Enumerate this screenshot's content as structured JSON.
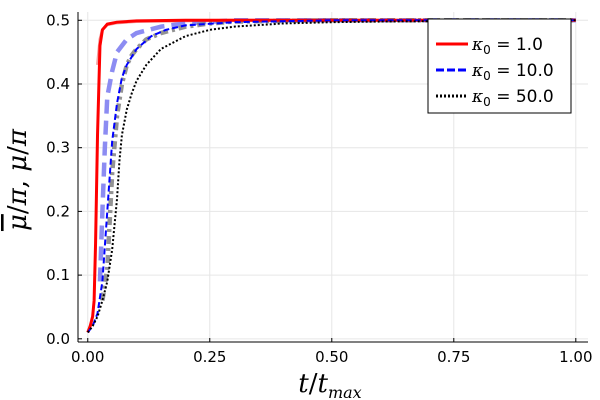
{
  "chart_data": {
    "type": "line",
    "xlabel": "t/t_max",
    "ylabel": "μ̄/π, μ/π",
    "xlim": [
      0.0,
      1.0
    ],
    "ylim": [
      0.0,
      0.5
    ],
    "x_ticks": [
      "0.00",
      "0.25",
      "0.50",
      "0.75",
      "1.00"
    ],
    "y_ticks": [
      "0.0",
      "0.1",
      "0.2",
      "0.3",
      "0.4",
      "0.5"
    ],
    "grid": true,
    "legend_position": "top-right",
    "legend": [
      {
        "prefix": "κ",
        "sub": "0",
        "eq": " = ",
        "value": "1.0"
      },
      {
        "prefix": "κ",
        "sub": "0",
        "eq": " = ",
        "value": "10.0"
      },
      {
        "prefix": "κ",
        "sub": "0",
        "eq": " = ",
        "value": "50.0"
      }
    ],
    "series": [
      {
        "name": "κ0 = 1.0",
        "color": "#ff0000",
        "style": "solid",
        "x": [
          0.0,
          0.005,
          0.01,
          0.013,
          0.016,
          0.02,
          0.025,
          0.03,
          0.04,
          0.06,
          0.1,
          0.2,
          0.5,
          1.0
        ],
        "y": [
          0.01,
          0.02,
          0.035,
          0.06,
          0.15,
          0.32,
          0.46,
          0.485,
          0.494,
          0.497,
          0.499,
          0.5,
          0.5,
          0.5
        ]
      },
      {
        "name": "κ0 = 1.0 (μ̄)",
        "color": "#f4a0a0",
        "style": "solid",
        "x": [
          0.02,
          0.025,
          0.03,
          0.04,
          0.06,
          0.1,
          0.2,
          0.3,
          0.5,
          1.0
        ],
        "y": [
          0.43,
          0.47,
          0.485,
          0.493,
          0.496,
          0.498,
          0.499,
          0.5,
          0.5,
          0.5
        ]
      },
      {
        "name": "κ0 = 10.0",
        "color": "#0000ff",
        "style": "dashed",
        "x": [
          0.0,
          0.01,
          0.02,
          0.03,
          0.04,
          0.05,
          0.06,
          0.07,
          0.08,
          0.1,
          0.13,
          0.16,
          0.2,
          0.3,
          0.5,
          1.0
        ],
        "y": [
          0.01,
          0.02,
          0.04,
          0.09,
          0.2,
          0.31,
          0.37,
          0.41,
          0.43,
          0.455,
          0.475,
          0.485,
          0.492,
          0.497,
          0.5,
          0.5
        ]
      },
      {
        "name": "κ0 = 10.0 (μ̄)",
        "color": "#7878f0",
        "style": "dashed-thick",
        "x": [
          0.025,
          0.03,
          0.035,
          0.04,
          0.05,
          0.06,
          0.08,
          0.1,
          0.15,
          0.2,
          0.3,
          0.5,
          1.0
        ],
        "y": [
          0.09,
          0.2,
          0.3,
          0.38,
          0.42,
          0.45,
          0.47,
          0.48,
          0.49,
          0.495,
          0.5,
          0.5,
          0.5
        ]
      },
      {
        "name": "κ0 = 50.0",
        "color": "#000000",
        "style": "dotted",
        "x": [
          0.0,
          0.01,
          0.02,
          0.03,
          0.04,
          0.05,
          0.06,
          0.065,
          0.07,
          0.08,
          0.09,
          0.1,
          0.12,
          0.15,
          0.2,
          0.25,
          0.3,
          0.4,
          0.5,
          0.6,
          0.8,
          1.0
        ],
        "y": [
          0.01,
          0.02,
          0.035,
          0.06,
          0.09,
          0.14,
          0.22,
          0.28,
          0.32,
          0.36,
          0.385,
          0.405,
          0.43,
          0.455,
          0.475,
          0.485,
          0.49,
          0.495,
          0.497,
          0.498,
          0.499,
          0.5
        ]
      },
      {
        "name": "κ0 = 50.0 (μ̄)",
        "color": "#808080",
        "style": "dashdot-thick",
        "x": [
          0.03,
          0.04,
          0.05,
          0.06,
          0.07,
          0.08,
          0.09,
          0.1,
          0.12,
          0.15,
          0.2,
          0.25,
          0.3,
          0.5,
          1.0
        ],
        "y": [
          0.06,
          0.11,
          0.26,
          0.35,
          0.4,
          0.43,
          0.445,
          0.455,
          0.47,
          0.48,
          0.49,
          0.495,
          0.498,
          0.5,
          0.5
        ]
      }
    ]
  }
}
